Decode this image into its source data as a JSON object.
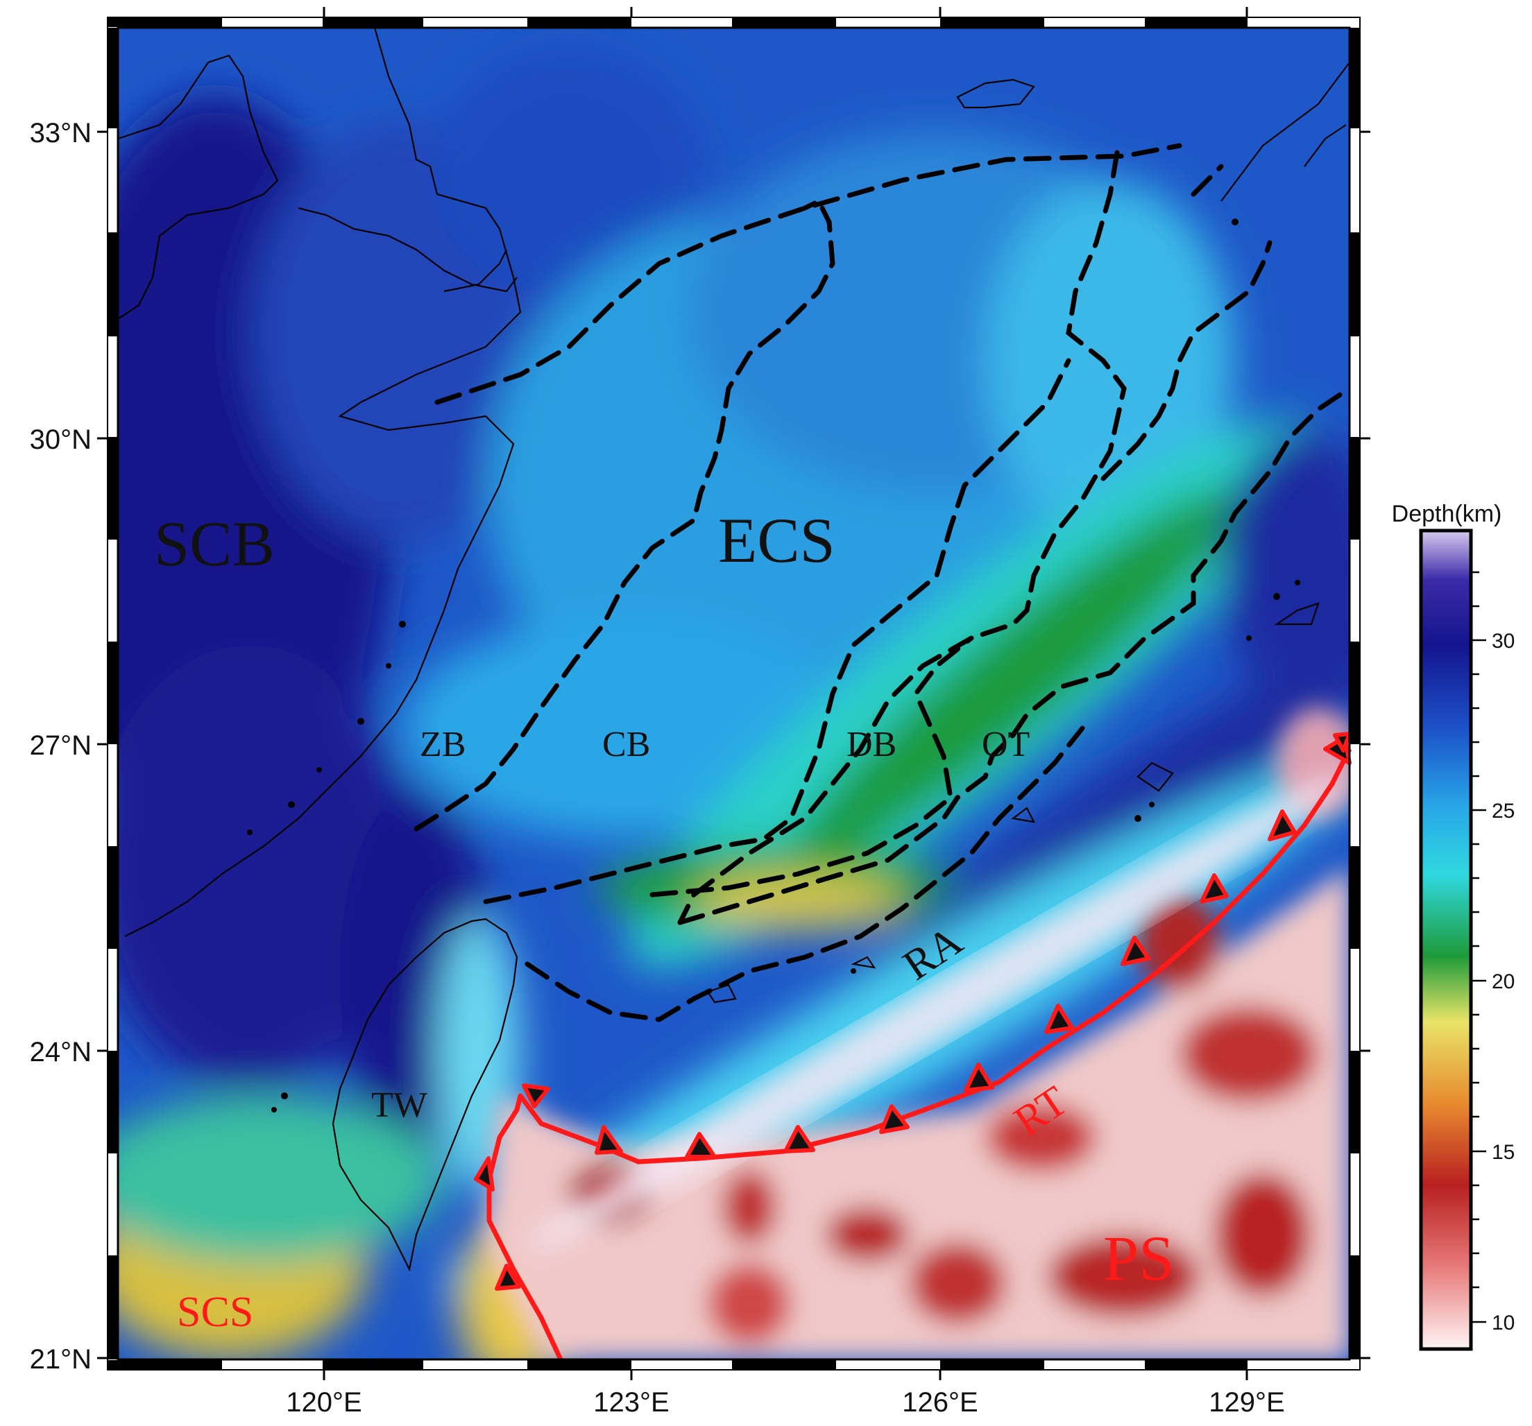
{
  "map": {
    "lat_ticks": [
      "33°N",
      "30°N",
      "27°N",
      "24°N",
      "21°N"
    ],
    "lon_ticks": [
      "120°E",
      "123°E",
      "126°E",
      "129°E"
    ],
    "extent": {
      "lon_min": 118,
      "lon_max": 130,
      "lat_min": 21,
      "lat_max": 34
    },
    "regions": {
      "scb": "SCB",
      "ecs": "ECS",
      "zb": "ZB",
      "cb": "CB",
      "db": "DB",
      "ot": "OT",
      "tw": "TW",
      "ra": "RA",
      "rt": "RT",
      "ps": "PS",
      "scs": "SCS"
    },
    "colors": {
      "deep": "#1a1a9a",
      "mid": "#2ab0e8",
      "green": "#2a9a30",
      "yellow": "#e8e060",
      "shallow": "#b02020",
      "trench": "#ff1a1a"
    }
  },
  "colorbar": {
    "title": "Depth(km)",
    "ticks": [
      "30",
      "25",
      "20",
      "15",
      "10"
    ],
    "range": [
      9,
      33
    ]
  }
}
